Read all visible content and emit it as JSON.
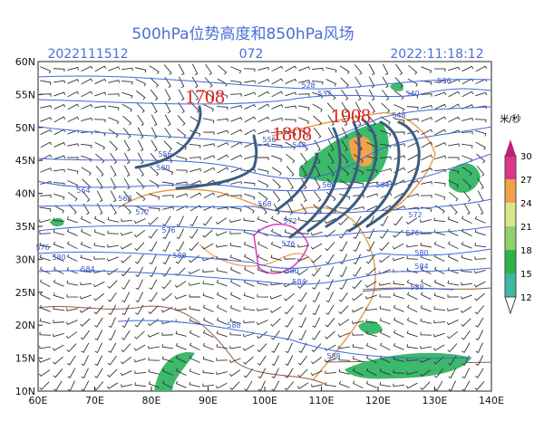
{
  "header": {
    "title": "500hPa位势高度和850hPa风场",
    "init_time": "2022111512",
    "forecast_hour": "072",
    "valid_time": "2022:11:18:12"
  },
  "lat_labels": [
    "60N",
    "55N",
    "50N",
    "45N",
    "40N",
    "35N",
    "30N",
    "25N",
    "20N",
    "15N",
    "10N"
  ],
  "lon_labels": [
    "60E",
    "70E",
    "80E",
    "90E",
    "100E",
    "110E",
    "120E",
    "130E",
    "140E"
  ],
  "annotations": [
    "1708",
    "1808",
    "1908"
  ],
  "colorbar": {
    "unit": "米/秒",
    "labels": [
      "30",
      "27",
      "24",
      "21",
      "18",
      "15",
      "12"
    ]
  },
  "contour_labels": [
    "528",
    "532",
    "536",
    "540",
    "548",
    "548",
    "556",
    "556",
    "560",
    "560",
    "564",
    "564",
    "568",
    "568",
    "572",
    "572",
    "572",
    "576",
    "576",
    "576",
    "576",
    "580",
    "580",
    "580",
    "580",
    "584",
    "584",
    "584",
    "588",
    "588",
    "588"
  ]
}
